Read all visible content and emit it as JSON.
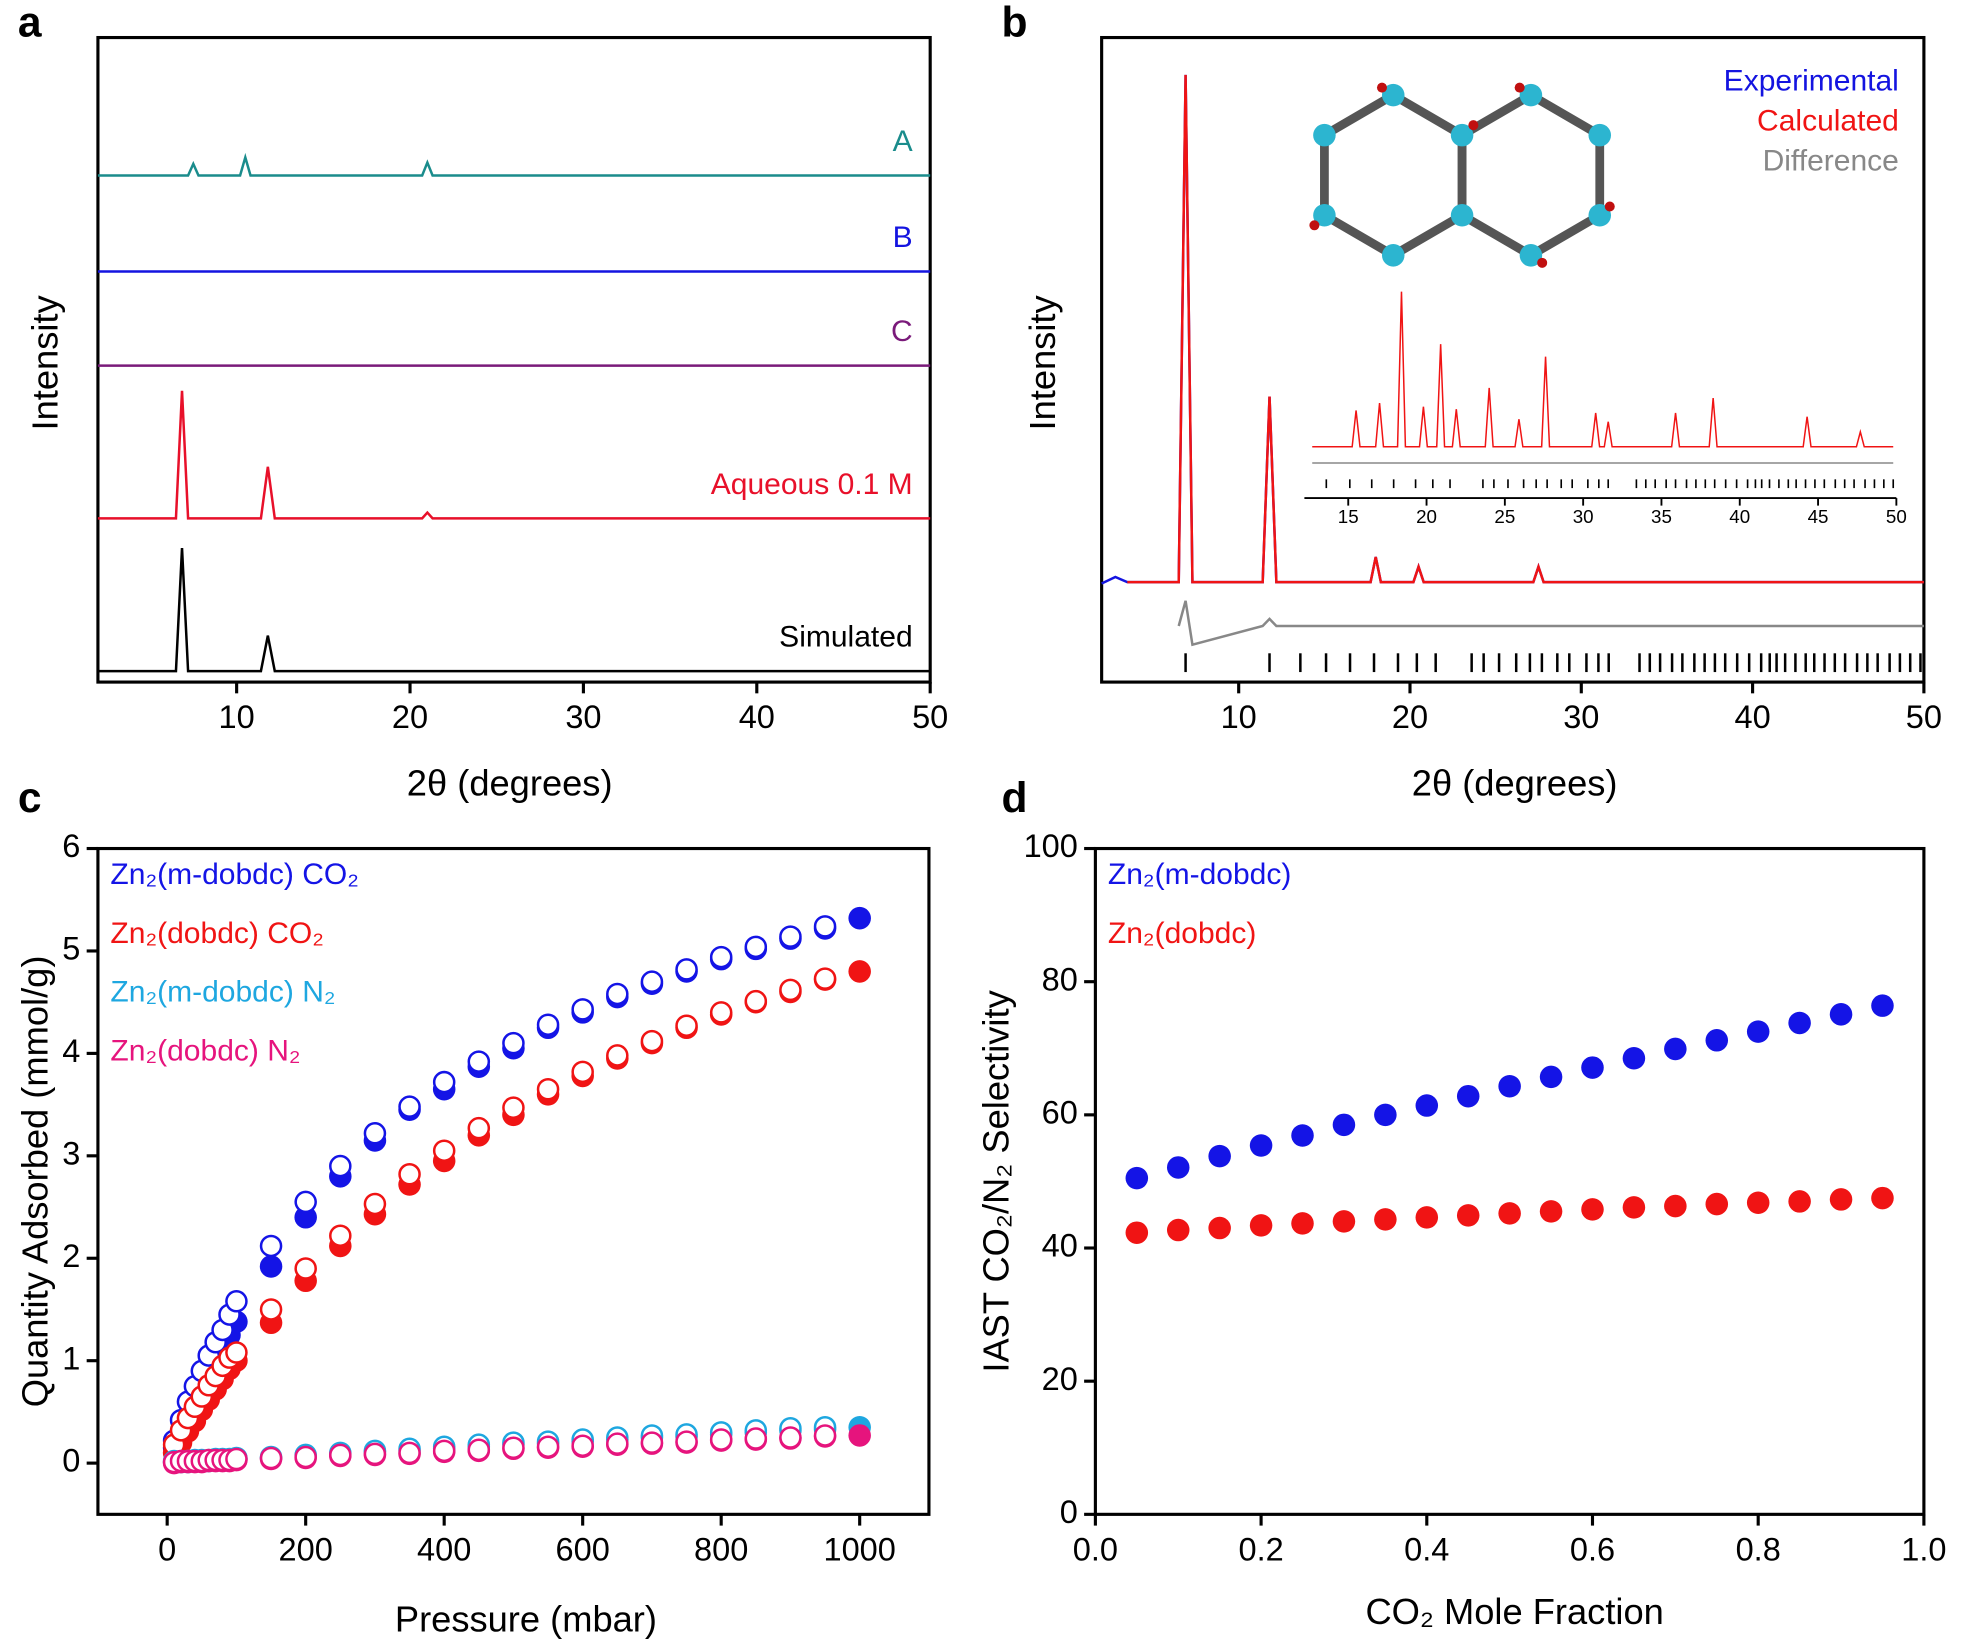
{
  "chart_data": [
    {
      "panel": "a",
      "type": "line",
      "x_label": "2θ (degrees)",
      "y_label": "Intensity",
      "x": [
        2,
        6.5,
        6.85,
        7.2,
        7.5,
        7.8,
        10.2,
        10.5,
        10.8,
        11.4,
        11.8,
        12.2,
        20.7,
        21,
        21.3,
        50
      ],
      "xlim": [
        2,
        50
      ],
      "xticks": [
        10,
        20,
        30,
        40,
        50
      ],
      "ylim": [
        0,
        100
      ],
      "series": [
        {
          "name": "A",
          "color": "#1a8c8c",
          "values": [
            78.6,
            78.6,
            78.6,
            78.6,
            80.4,
            78.6,
            78.6,
            81.4,
            78.6,
            78.6,
            78.6,
            78.6,
            78.6,
            80.6,
            78.6,
            78.6
          ]
        },
        {
          "name": "B",
          "color": "#1414e0",
          "values": [
            63.7,
            63.7,
            63.7,
            63.7,
            63.7,
            63.7,
            63.7,
            63.7,
            63.7,
            63.7,
            63.7,
            63.7,
            63.7,
            63.7,
            63.7,
            63.7
          ]
        },
        {
          "name": "C",
          "color": "#7a1a7a",
          "values": [
            49.1,
            49.1,
            49.1,
            49.1,
            49.1,
            49.1,
            49.1,
            49.1,
            49.1,
            49.1,
            49.1,
            49.1,
            49.1,
            49.1,
            49.1,
            49.1
          ]
        },
        {
          "name": "Aqueous 0.1 M",
          "color": "#e8102a",
          "values": [
            25.4,
            25.4,
            45.2,
            25.4,
            25.4,
            25.4,
            25.4,
            25.4,
            25.4,
            25.4,
            33.4,
            25.4,
            25.4,
            26.3,
            25.4,
            25.4
          ]
        },
        {
          "name": "Simulated",
          "color": "#000000",
          "values": [
            1.7,
            1.7,
            20.8,
            1.7,
            1.7,
            1.7,
            1.7,
            1.7,
            1.7,
            1.7,
            7.2,
            1.7,
            1.7,
            1.7,
            1.7,
            1.7
          ]
        }
      ]
    },
    {
      "panel": "b",
      "type": "line",
      "x_label": "2θ (degrees)",
      "y_label": "Intensity",
      "legend": "upper right",
      "x": [
        2,
        2.8,
        3.5,
        6.5,
        6.9,
        7.3,
        11.4,
        11.8,
        12.2,
        17.7,
        18,
        18.3,
        20.2,
        20.5,
        20.8,
        27.2,
        27.5,
        27.8,
        50
      ],
      "xlim": [
        2,
        50
      ],
      "xticks": [
        10,
        20,
        30,
        40,
        50
      ],
      "ylim": [
        0,
        100
      ],
      "series": [
        {
          "name": "Experimental",
          "color": "#1414e0",
          "values": [
            15.3,
            16.3,
            15.5,
            15.5,
            94.2,
            15.5,
            15.5,
            44.3,
            15.5,
            15.5,
            19.4,
            15.5,
            15.5,
            17.9,
            15.5,
            15.5,
            17.9,
            15.5,
            15.5
          ]
        },
        {
          "name": "Calculated",
          "color": "#f01414",
          "values": [
            null,
            null,
            15.5,
            15.5,
            94.2,
            15.5,
            15.5,
            44.3,
            15.5,
            15.5,
            19.4,
            15.5,
            15.5,
            17.9,
            15.5,
            15.5,
            17.9,
            15.5,
            15.5
          ]
        },
        {
          "name": "Difference",
          "color": "#888888",
          "values": [
            null,
            null,
            null,
            8.7,
            12.6,
            5.8,
            8.7,
            9.8,
            8.7,
            8.7,
            8.7,
            8.7,
            8.7,
            8.7,
            8.7,
            8.7,
            8.7,
            8.7,
            8.7
          ]
        }
      ],
      "reflections": [
        6.9,
        11.8,
        13.6,
        15.1,
        16.5,
        17.9,
        19.3,
        20.4,
        21.5,
        23.6,
        24.3,
        25.2,
        26.2,
        27.0,
        27.7,
        28.6,
        29.3,
        30.3,
        31.0,
        31.6,
        33.4,
        34.0,
        34.6,
        35.3,
        35.9,
        36.6,
        37.2,
        37.8,
        38.4,
        39.1,
        39.8,
        40.5,
        41.0,
        41.4,
        41.9,
        42.5,
        43.1,
        43.6,
        44.2,
        44.8,
        45.4,
        46.1,
        46.7,
        47.3,
        48.0,
        48.6,
        49.2,
        49.8
      ]
    },
    {
      "type": "line",
      "x": [
        12.7,
        15.25,
        15.5,
        15.75,
        16.75,
        17,
        17.25,
        18.15,
        18.4,
        18.65,
        19.55,
        19.8,
        20.05,
        20.65,
        20.9,
        21.15,
        21.65,
        21.9,
        22.15,
        23.75,
        24,
        24.25,
        25.65,
        25.9,
        26.15,
        27.35,
        27.6,
        27.85,
        30.55,
        30.8,
        31.05,
        31.35,
        31.6,
        31.85,
        35.65,
        35.9,
        36.15,
        38.05,
        38.3,
        38.55,
        44.05,
        44.3,
        44.55,
        47.45,
        47.7,
        47.95,
        49.8
      ],
      "xlim": [
        12.2,
        50
      ],
      "xticks": [
        15,
        20,
        25,
        30,
        35,
        40,
        45,
        50
      ],
      "ylim": [
        0,
        100
      ],
      "series": [
        {
          "color": "#f01414",
          "values": [
            24.4,
            24.4,
            41.7,
            24.4,
            24.4,
            45.2,
            24.4,
            24.4,
            98.2,
            24.4,
            24.4,
            43.5,
            24.4,
            24.4,
            73.2,
            24.4,
            24.4,
            42.3,
            24.4,
            24.4,
            52.4,
            24.4,
            24.4,
            37.5,
            24.4,
            24.4,
            67.3,
            24.4,
            24.4,
            40.5,
            24.4,
            24.4,
            36.3,
            24.4,
            24.4,
            40.5,
            24.4,
            24.4,
            47.6,
            24.4,
            24.4,
            38.7,
            24.4,
            24.4,
            31.5,
            24.4,
            24.4
          ]
        },
        {
          "color": "#888888",
          "values": [
            16.7,
            16.7,
            16.7,
            16.7,
            16.7,
            16.7,
            16.7,
            16.7,
            16.7,
            16.7,
            16.7,
            16.7,
            16.7,
            16.7,
            16.7,
            16.7,
            16.7,
            16.7,
            16.7,
            16.7,
            16.7,
            16.7,
            16.7,
            16.7,
            16.7,
            16.7,
            16.7,
            16.7,
            16.7,
            16.7,
            16.7,
            16.7,
            16.7,
            16.7,
            16.7,
            16.7,
            16.7,
            16.7,
            16.7,
            16.7,
            16.7,
            16.7,
            16.7,
            16.7,
            16.7,
            16.7,
            16.7
          ]
        }
      ],
      "reflections": [
        13.6,
        15.1,
        16.5,
        17.9,
        19.3,
        20.4,
        21.5,
        23.6,
        24.3,
        25.2,
        26.2,
        27.0,
        27.7,
        28.6,
        29.3,
        30.3,
        31.0,
        31.6,
        33.4,
        34.0,
        34.6,
        35.3,
        35.9,
        36.6,
        37.2,
        37.8,
        38.4,
        39.1,
        39.8,
        40.5,
        41.0,
        41.4,
        41.9,
        42.5,
        43.1,
        43.6,
        44.2,
        44.8,
        45.4,
        46.1,
        46.7,
        47.3,
        48.0,
        48.6,
        49.2,
        49.8
      ]
    },
    {
      "panel": "c",
      "type": "scatter",
      "x_label": "Pressure (mbar)",
      "y_label": "Quantity Adsorbed (mmol/g)",
      "legend": "upper left",
      "x": [
        10,
        20,
        30,
        40,
        50,
        60,
        70,
        80,
        90,
        100,
        150,
        200,
        250,
        300,
        350,
        400,
        450,
        500,
        550,
        600,
        650,
        700,
        750,
        800,
        850,
        900,
        950,
        1000
      ],
      "xlim": [
        -100,
        1100
      ],
      "xticks": [
        0,
        200,
        400,
        600,
        800,
        1000
      ],
      "ylim": [
        -0.5,
        6
      ],
      "yticks": [
        0,
        1,
        2,
        3,
        4,
        5,
        6
      ],
      "series": [
        {
          "name": "Zn₂(m-dobdc) CO₂",
          "color": "#1414e6",
          "values": [
            0.15,
            0.3,
            0.44,
            0.58,
            0.72,
            0.86,
            0.99,
            1.12,
            1.25,
            1.38,
            1.92,
            2.4,
            2.8,
            3.15,
            3.45,
            3.65,
            3.87,
            4.05,
            4.25,
            4.4,
            4.55,
            4.68,
            4.8,
            4.92,
            5.02,
            5.12,
            5.22,
            5.32
          ],
          "desorption": [
            0.22,
            0.42,
            0.6,
            0.75,
            0.9,
            1.05,
            1.18,
            1.3,
            1.45,
            1.58,
            2.12,
            2.55,
            2.9,
            3.22,
            3.48,
            3.72,
            3.92,
            4.1,
            4.28,
            4.43,
            4.58,
            4.7,
            4.82,
            4.94,
            5.04,
            5.14,
            5.24,
            null
          ]
        },
        {
          "name": "Zn₂(dobdc) CO₂",
          "color": "#f01414",
          "values": [
            0.1,
            0.2,
            0.31,
            0.41,
            0.52,
            0.62,
            0.72,
            0.82,
            0.92,
            1.0,
            1.37,
            1.78,
            2.12,
            2.43,
            2.72,
            2.95,
            3.2,
            3.4,
            3.6,
            3.78,
            3.95,
            4.1,
            4.25,
            4.38,
            4.5,
            4.6,
            4.72,
            4.8
          ],
          "desorption": [
            0.18,
            0.32,
            0.44,
            0.55,
            0.65,
            0.76,
            0.85,
            0.95,
            1.03,
            1.08,
            1.5,
            1.9,
            2.22,
            2.53,
            2.82,
            3.05,
            3.27,
            3.47,
            3.65,
            3.82,
            3.98,
            4.12,
            4.27,
            4.4,
            4.51,
            4.62,
            4.73,
            null
          ]
        },
        {
          "name": "Zn₂(m-dobdc) N₂",
          "color": "#1ea7e0",
          "values": [
            0.01,
            0.01,
            0.01,
            0.02,
            0.02,
            0.02,
            0.03,
            0.03,
            0.03,
            0.04,
            0.05,
            0.07,
            0.09,
            0.11,
            0.12,
            0.14,
            0.16,
            0.18,
            0.19,
            0.21,
            0.23,
            0.25,
            0.26,
            0.28,
            0.3,
            0.32,
            0.33,
            0.35
          ],
          "desorption": [
            0.02,
            0.02,
            0.02,
            0.03,
            0.03,
            0.03,
            0.04,
            0.04,
            0.04,
            0.05,
            0.06,
            0.08,
            0.1,
            0.12,
            0.14,
            0.16,
            0.18,
            0.2,
            0.21,
            0.23,
            0.25,
            0.27,
            0.28,
            0.3,
            0.32,
            0.34,
            0.35,
            null
          ]
        },
        {
          "name": "Zn₂(dobdc) N₂",
          "color": "#e6147d",
          "values": [
            0,
            0.01,
            0.01,
            0.01,
            0.01,
            0.02,
            0.02,
            0.02,
            0.02,
            0.03,
            0.04,
            0.05,
            0.07,
            0.08,
            0.09,
            0.11,
            0.12,
            0.14,
            0.15,
            0.16,
            0.18,
            0.19,
            0.2,
            0.22,
            0.23,
            0.24,
            0.26,
            0.27
          ],
          "desorption": [
            0.01,
            0.02,
            0.02,
            0.02,
            0.02,
            0.03,
            0.03,
            0.03,
            0.03,
            0.04,
            0.05,
            0.06,
            0.08,
            0.09,
            0.1,
            0.12,
            0.13,
            0.15,
            0.16,
            0.17,
            0.19,
            0.2,
            0.21,
            0.23,
            0.24,
            0.25,
            0.27,
            null
          ]
        }
      ]
    },
    {
      "panel": "d",
      "type": "scatter",
      "x_label": "CO₂ Mole Fraction",
      "y_label": "IAST CO₂/N₂ Selectivity",
      "legend": "upper left",
      "x": [
        0.05,
        0.1,
        0.15,
        0.2,
        0.25,
        0.3,
        0.35,
        0.4,
        0.45,
        0.5,
        0.55,
        0.6,
        0.65,
        0.7,
        0.75,
        0.8,
        0.85,
        0.9,
        0.95
      ],
      "xlim": [
        0,
        1
      ],
      "xticks": [
        {
          "value": 0,
          "label": "0.0"
        },
        0.2,
        0.4,
        0.6,
        0.8,
        {
          "value": 1,
          "label": "1.0"
        }
      ],
      "ylim": [
        0,
        100
      ],
      "yticks": [
        0,
        20,
        40,
        60,
        80,
        100
      ],
      "series": [
        {
          "name": "Zn₂(m-dobdc)",
          "color": "#1414e6",
          "values": [
            50.5,
            52.1,
            53.8,
            55.4,
            56.9,
            58.5,
            60.0,
            61.4,
            62.8,
            64.3,
            65.7,
            67.1,
            68.5,
            69.9,
            71.2,
            72.5,
            73.8,
            75.1,
            76.4
          ]
        },
        {
          "name": "Zn₂(dobdc)",
          "color": "#f01414",
          "values": [
            42.3,
            42.7,
            43.0,
            43.4,
            43.7,
            44.0,
            44.3,
            44.6,
            44.9,
            45.2,
            45.5,
            45.8,
            46.1,
            46.3,
            46.6,
            46.8,
            47.0,
            47.3,
            47.5
          ]
        }
      ]
    }
  ]
}
